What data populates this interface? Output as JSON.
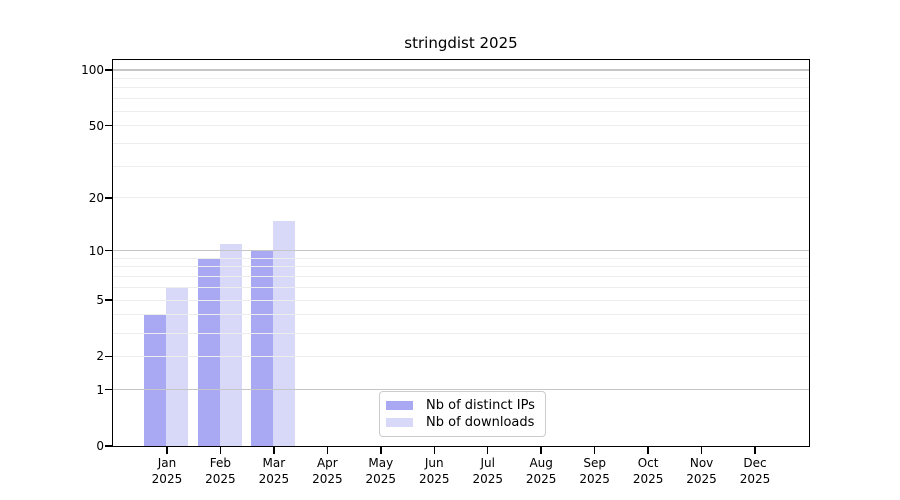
{
  "chart_data": {
    "type": "bar",
    "title": "stringdist 2025",
    "year_label": "2025",
    "categories": [
      "Jan",
      "Feb",
      "Mar",
      "Apr",
      "May",
      "Jun",
      "Jul",
      "Aug",
      "Sep",
      "Oct",
      "Nov",
      "Dec"
    ],
    "series": [
      {
        "name": "Nb of distinct IPs",
        "color": "#a8a8f3",
        "values": [
          4,
          9,
          10,
          0,
          0,
          0,
          0,
          0,
          0,
          0,
          0,
          0
        ]
      },
      {
        "name": "Nb of downloads",
        "color": "#d8d8f8",
        "values": [
          6,
          11,
          15,
          0,
          0,
          0,
          0,
          0,
          0,
          0,
          0,
          0
        ]
      }
    ],
    "y_axis": {
      "scale": "log1p",
      "tick_labels": [
        0,
        1,
        2,
        5,
        10,
        20,
        50,
        100
      ],
      "major_gridlines": [
        1,
        10,
        100
      ],
      "minor_gridlines": [
        2,
        3,
        4,
        5,
        6,
        7,
        8,
        9,
        20,
        30,
        40,
        50,
        60,
        70,
        80,
        90
      ],
      "ylim": [
        0,
        110
      ]
    },
    "legend_position": "lower center inside",
    "grid": true
  },
  "colors": {
    "background": "#ffffff",
    "spine": "#000000",
    "major_grid": "#c6c6c6",
    "minor_grid": "#ededed",
    "text": "#000000",
    "legend_border": "#cccccc"
  }
}
